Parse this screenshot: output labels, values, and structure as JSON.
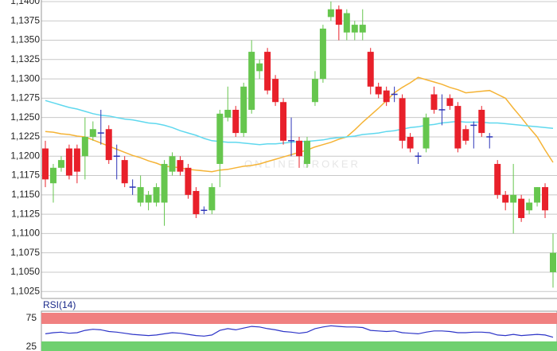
{
  "chart_data": [
    {
      "type": "candlestick",
      "watermark": "ONLINE BROKER",
      "open": [
        1.121,
        1.1165,
        1.1185,
        1.121,
        1.121,
        1.12,
        1.1225,
        1.123,
        1.1235,
        1.12,
        1.1195,
        1.116,
        1.114,
        1.114,
        1.114,
        1.114,
        1.118,
        1.1195,
        1.1185,
        1.1155,
        1.113,
        1.113,
        1.119,
        1.125,
        1.126,
        1.123,
        1.126,
        1.131,
        1.1335,
        1.13,
        1.127,
        1.122,
        1.122,
        1.119,
        1.127,
        1.13,
        1.138,
        1.139,
        1.136,
        1.136,
        1.136,
        1.1335,
        1.129,
        1.1285,
        1.128,
        1.1275,
        1.1225,
        1.12,
        1.121,
        1.128,
        1.126,
        1.1275,
        1.1265,
        1.1235,
        1.124,
        1.126,
        1.1225,
        1.119,
        1.115,
        1.114,
        1.1145,
        1.113,
        1.114,
        1.116,
        1.105
      ],
      "high": [
        1.122,
        1.119,
        1.12,
        1.1215,
        1.1215,
        1.125,
        1.1245,
        1.126,
        1.124,
        1.1215,
        1.12,
        1.117,
        1.1175,
        1.1155,
        1.1165,
        1.1195,
        1.1205,
        1.12,
        1.119,
        1.116,
        1.1135,
        1.1165,
        1.126,
        1.129,
        1.1265,
        1.1295,
        1.135,
        1.1325,
        1.134,
        1.1305,
        1.1275,
        1.125,
        1.1225,
        1.1225,
        1.131,
        1.137,
        1.14,
        1.1395,
        1.139,
        1.1375,
        1.139,
        1.134,
        1.1295,
        1.129,
        1.129,
        1.128,
        1.123,
        1.1205,
        1.1255,
        1.129,
        1.128,
        1.128,
        1.127,
        1.124,
        1.1245,
        1.1265,
        1.123,
        1.1195,
        1.1155,
        1.119,
        1.115,
        1.1145,
        1.116,
        1.1165,
        1.11
      ],
      "low": [
        1.116,
        1.114,
        1.118,
        1.117,
        1.1165,
        1.117,
        1.122,
        1.1215,
        1.119,
        1.117,
        1.116,
        1.115,
        1.1135,
        1.113,
        1.1135,
        1.111,
        1.1175,
        1.1175,
        1.1145,
        1.112,
        1.1125,
        1.1125,
        1.116,
        1.1245,
        1.1225,
        1.1225,
        1.1255,
        1.13,
        1.128,
        1.1265,
        1.1215,
        1.12,
        1.1185,
        1.1185,
        1.1265,
        1.1295,
        1.1375,
        1.135,
        1.135,
        1.135,
        1.135,
        1.128,
        1.1275,
        1.1265,
        1.127,
        1.121,
        1.1205,
        1.119,
        1.1205,
        1.1255,
        1.124,
        1.126,
        1.1205,
        1.1215,
        1.121,
        1.1225,
        1.121,
        1.1145,
        1.113,
        1.11,
        1.1115,
        1.1125,
        1.1135,
        1.112,
        1.103
      ],
      "close": [
        1.117,
        1.1185,
        1.1195,
        1.1175,
        1.118,
        1.1225,
        1.1235,
        1.123,
        1.1195,
        1.12,
        1.1165,
        1.116,
        1.116,
        1.115,
        1.116,
        1.119,
        1.12,
        1.118,
        1.115,
        1.1125,
        1.113,
        1.116,
        1.1255,
        1.126,
        1.123,
        1.129,
        1.1335,
        1.132,
        1.1285,
        1.127,
        1.122,
        1.122,
        1.12,
        1.122,
        1.13,
        1.1365,
        1.139,
        1.137,
        1.1385,
        1.137,
        1.137,
        1.129,
        1.128,
        1.127,
        1.128,
        1.122,
        1.121,
        1.12,
        1.125,
        1.126,
        1.126,
        1.1265,
        1.121,
        1.122,
        1.124,
        1.123,
        1.1225,
        1.115,
        1.114,
        1.115,
        1.112,
        1.114,
        1.116,
        1.113,
        1.1075
      ],
      "up_color": "#66c64e",
      "down_color": "#e8202a",
      "flat_color": "#2d35b8",
      "overlays": [
        {
          "color": "#f5b335",
          "values": [
            1.1232,
            1.1231,
            1.1229,
            1.1228,
            1.1226,
            1.1225,
            1.1221,
            1.1217,
            1.1213,
            1.1209,
            1.1205,
            1.1201,
            1.1198,
            1.1194,
            1.1191,
            1.1187,
            1.1186,
            1.1185,
            1.1183,
            1.1182,
            1.1181,
            1.118,
            1.1182,
            1.1183,
            1.1185,
            1.1187,
            1.1188,
            1.119,
            1.1193,
            1.1196,
            1.1199,
            1.1202,
            1.1205,
            1.1208,
            1.1212,
            1.1215,
            1.1218,
            1.1222,
            1.1225,
            1.1234,
            1.1244,
            1.1253,
            1.1262,
            1.1272,
            1.1282,
            1.1289,
            1.1295,
            1.1302,
            1.1299,
            1.1296,
            1.1293,
            1.1289,
            1.1286,
            1.1282,
            1.1283,
            1.1284,
            1.1285,
            1.128,
            1.1275,
            1.1262,
            1.125,
            1.1237,
            1.1225,
            1.1208,
            1.1192
          ]
        },
        {
          "color": "#5fd8ee",
          "values": [
            1.1272,
            1.1269,
            1.1266,
            1.1263,
            1.1261,
            1.1258,
            1.1255,
            1.1253,
            1.1252,
            1.125,
            1.1248,
            1.1247,
            1.1245,
            1.1243,
            1.1242,
            1.124,
            1.1237,
            1.1233,
            1.123,
            1.1227,
            1.1223,
            1.122,
            1.1219,
            1.1218,
            1.1218,
            1.1217,
            1.1216,
            1.1215,
            1.1216,
            1.1216,
            1.1217,
            1.1218,
            1.1219,
            1.1219,
            1.122,
            1.1221,
            1.1223,
            1.1224,
            1.1225,
            1.1226,
            1.1228,
            1.1229,
            1.123,
            1.1232,
            1.1233,
            1.1235,
            1.1237,
            1.1238,
            1.124,
            1.1241,
            1.1243,
            1.1244,
            1.1245,
            1.1244,
            1.1244,
            1.1244,
            1.1243,
            1.1243,
            1.1242,
            1.1241,
            1.124,
            1.1239,
            1.1238,
            1.1237,
            1.1236
          ]
        }
      ],
      "ylim": [
        1.1016,
        1.1402
      ],
      "yticks": [
        {
          "value": 1.14,
          "label": "1,1400"
        },
        {
          "value": 1.1375,
          "label": "1,1375"
        },
        {
          "value": 1.135,
          "label": "1,1350"
        },
        {
          "value": 1.1325,
          "label": "1,1325"
        },
        {
          "value": 1.13,
          "label": "1,1300"
        },
        {
          "value": 1.1275,
          "label": "1,1275"
        },
        {
          "value": 1.125,
          "label": "1,1250"
        },
        {
          "value": 1.1225,
          "label": "1,1225"
        },
        {
          "value": 1.12,
          "label": "1,1200"
        },
        {
          "value": 1.1175,
          "label": "1,1175"
        },
        {
          "value": 1.115,
          "label": "1,1150"
        },
        {
          "value": 1.1125,
          "label": "1,1125"
        },
        {
          "value": 1.11,
          "label": "1,1100"
        },
        {
          "value": 1.1075,
          "label": "1,1075"
        },
        {
          "value": 1.105,
          "label": "1,1050"
        },
        {
          "value": 1.1025,
          "label": "1,1025"
        }
      ],
      "grid": true
    },
    {
      "type": "line",
      "title": "RSI(14)",
      "color": "#2d35c8",
      "values": [
        48,
        50,
        51,
        49,
        50,
        54,
        56,
        55,
        52,
        51,
        49,
        47,
        46,
        45,
        46,
        48,
        50,
        49,
        47,
        45,
        44,
        46,
        54,
        57,
        55,
        58,
        61,
        60,
        57,
        55,
        52,
        51,
        49,
        51,
        57,
        60,
        62,
        61,
        60,
        60,
        59,
        54,
        53,
        52,
        53,
        50,
        49,
        48,
        51,
        53,
        53,
        52,
        50,
        50,
        51,
        51,
        50,
        46,
        45,
        47,
        45,
        46,
        47,
        46,
        42
      ],
      "ylim": [
        18,
        87.5
      ],
      "yticks": [
        75,
        25
      ],
      "band_colors": [
        "#f08080",
        "#6fd06f"
      ]
    }
  ]
}
